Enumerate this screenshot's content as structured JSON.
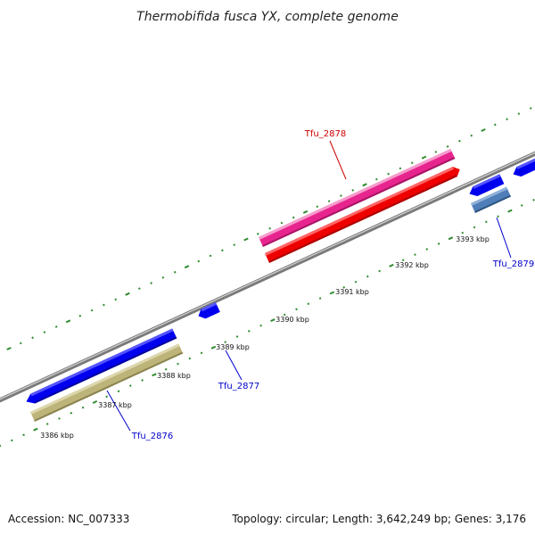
{
  "title": "Thermobifida fusca YX, complete genome",
  "footer": {
    "accession": "Accession: NC_007333",
    "topology": "Topology: circular; Length: 3,642,249 bp; Genes: 3,176"
  },
  "colors": {
    "backbone": "#8c8c8c",
    "backbone_highlight": "#cfcfcf",
    "tick": "#2e8b2e",
    "forward_cds": "#0000ee",
    "reverse_cds": "#0000ee",
    "rna": "#e8258f",
    "gene_red": "#ee0000",
    "gene_khaki": "#bdb47a",
    "gene_steelblue": "#4f7eb8",
    "label_blue": "#0000cc",
    "label_red": "#cc0000"
  },
  "ticks": [
    {
      "label": "3386 kbp"
    },
    {
      "label": "3387 kbp"
    },
    {
      "label": "3388 kbp"
    },
    {
      "label": "3389 kbp"
    },
    {
      "label": "3390 kbp"
    },
    {
      "label": "3391 kbp"
    },
    {
      "label": "3392 kbp"
    },
    {
      "label": "3393 kbp"
    }
  ],
  "gene_labels": [
    {
      "name": "Tfu_2876",
      "color": "#0000cc"
    },
    {
      "name": "Tfu_2877",
      "color": "#0000cc"
    },
    {
      "name": "Tfu_2878",
      "color": "#cc0000"
    },
    {
      "name": "Tfu_2879",
      "color": "#0000cc"
    }
  ]
}
